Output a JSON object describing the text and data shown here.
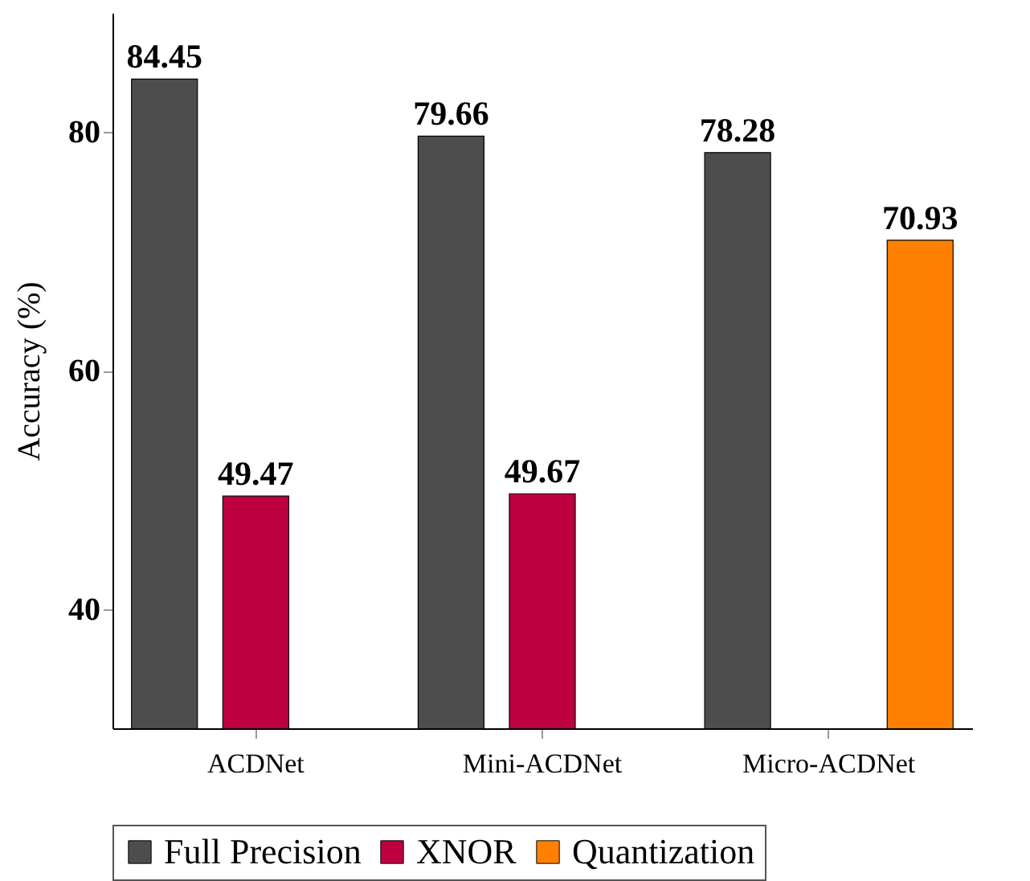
{
  "chart_data": {
    "type": "bar",
    "ylabel": "Accuracy (%)",
    "categories": [
      "ACDNet",
      "Mini-ACDNet",
      "Micro-ACDNet"
    ],
    "series": [
      {
        "name": "Full Precision",
        "color": "#4d4d4d",
        "values": [
          84.45,
          79.66,
          78.28
        ]
      },
      {
        "name": "XNOR",
        "color": "#bf0040",
        "values": [
          49.47,
          49.67,
          null
        ]
      },
      {
        "name": "Quantization",
        "color": "#ff8000",
        "values": [
          null,
          null,
          70.93
        ]
      }
    ],
    "ylim": [
      30,
      90
    ],
    "yticks": [
      40,
      60,
      80
    ],
    "grid": false,
    "legend": "bottom",
    "data_labels": true
  }
}
